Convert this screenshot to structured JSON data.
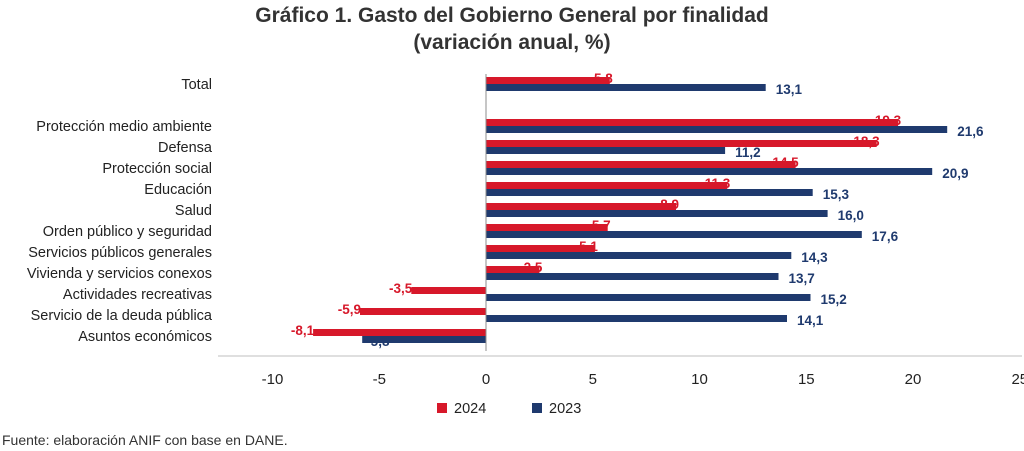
{
  "chart_data": {
    "type": "bar",
    "orientation": "horizontal",
    "title": "Gráfico 1. Gasto del Gobierno General por finalidad",
    "subtitle": "(variación anual, %)",
    "categories": [
      "Total",
      "Protección medio ambiente",
      "Defensa",
      "Protección social",
      "Educación",
      "Salud",
      "Orden público y seguridad",
      "Servicios públicos generales",
      "Vivienda y servicios conexos",
      "Actividades recreativas",
      "Servicio de la deuda pública",
      "Asuntos económicos"
    ],
    "series": [
      {
        "name": "2024",
        "color": "#d7182a",
        "values": [
          5.8,
          19.3,
          18.3,
          14.5,
          11.3,
          8.9,
          5.7,
          5.1,
          2.5,
          -3.5,
          -5.9,
          -8.1
        ],
        "labels": [
          "5,8",
          "19,3",
          "18,3",
          "14,5",
          "11,3",
          "8,9",
          "5,7",
          "5,1",
          "2,5",
          "-3,5",
          "-5,9",
          "-8,1"
        ]
      },
      {
        "name": "2023",
        "color": "#1f3a6e",
        "values": [
          13.1,
          21.6,
          11.2,
          20.9,
          15.3,
          16.0,
          17.6,
          14.3,
          13.7,
          15.2,
          14.1,
          -5.8
        ],
        "labels": [
          "13,1",
          "21,6",
          "11,2",
          "20,9",
          "15,3",
          "16,0",
          "17,6",
          "14,3",
          "13,7",
          "15,2",
          "14,1",
          "-5,8"
        ]
      }
    ],
    "xlim": [
      -10,
      25
    ],
    "xticks": [
      "-10",
      "-5",
      "0",
      "5",
      "10",
      "15",
      "20",
      "25"
    ],
    "legend": "bottom-center",
    "grid": false
  },
  "source": "Fuente: elaboración ANIF con base en DANE."
}
